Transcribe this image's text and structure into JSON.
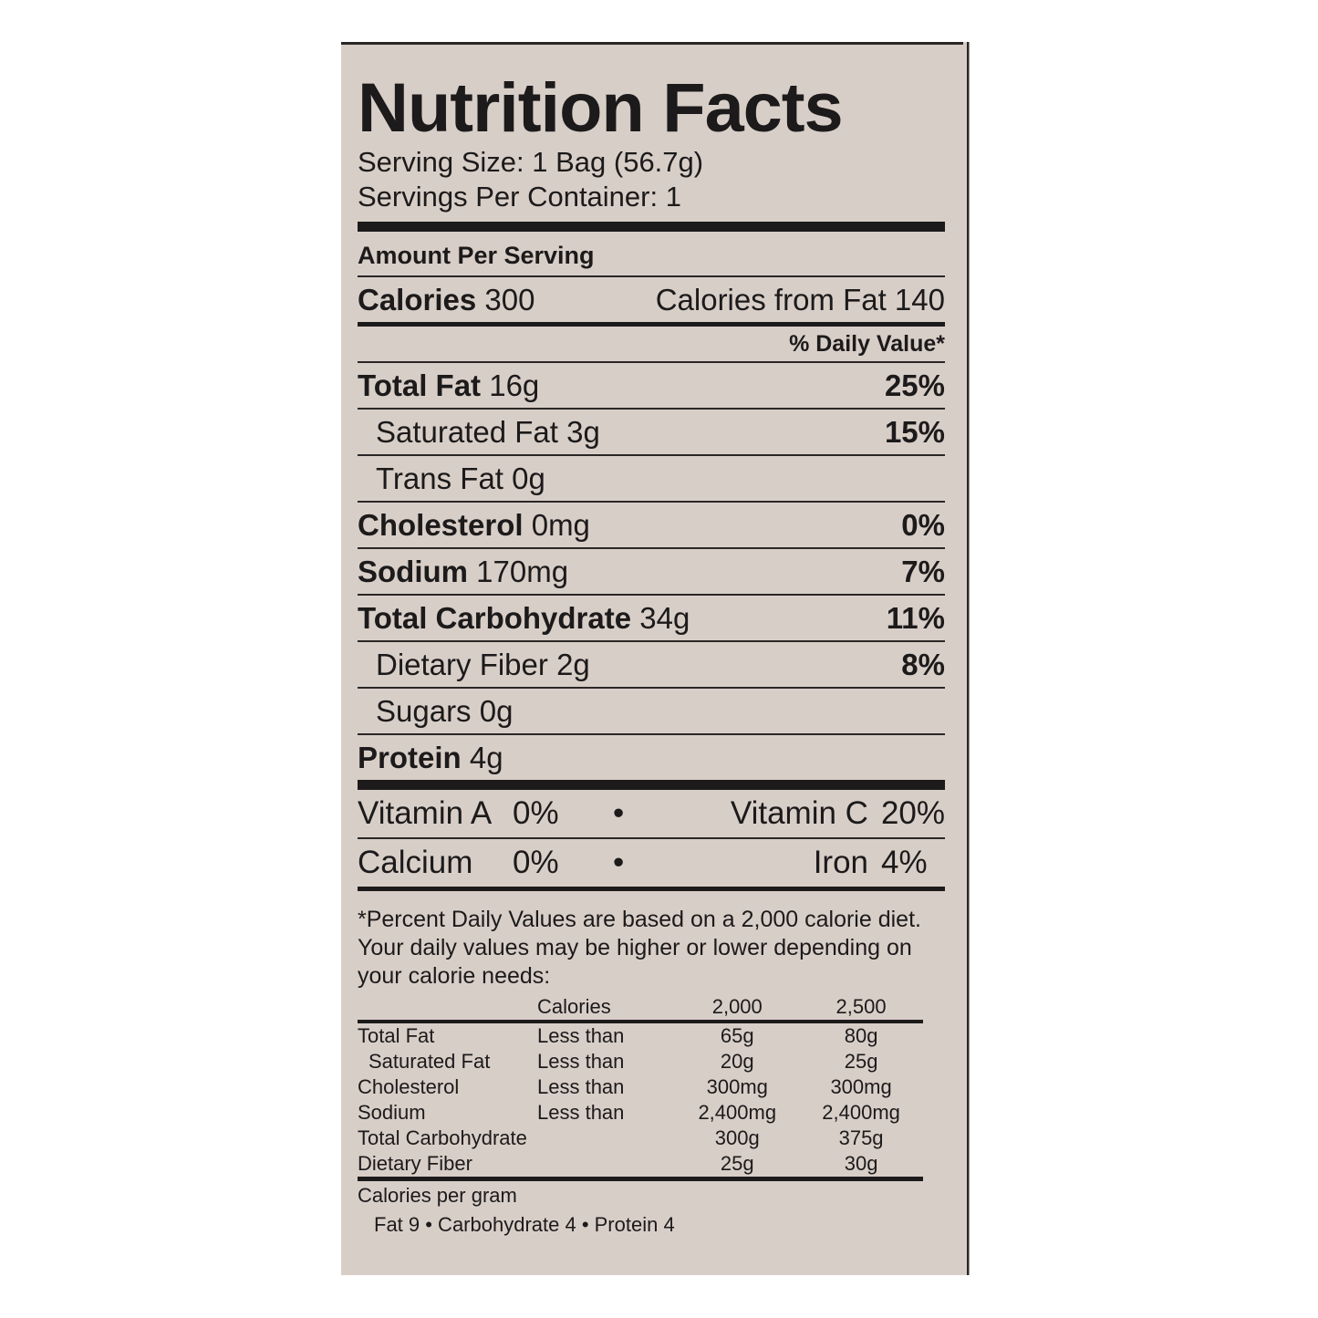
{
  "title": "Nutrition Facts",
  "serving_size": "Serving Size: 1 Bag (56.7g)",
  "servings_per_container": "Servings Per Container: 1",
  "amount_per_serving": "Amount Per Serving",
  "calories": {
    "label": "Calories",
    "value": "300",
    "from_fat": "Calories from Fat 140"
  },
  "daily_value_header": "% Daily Value*",
  "nutrients": [
    {
      "name": "Total Fat",
      "amount": "16g",
      "dv": "25%"
    },
    {
      "name": "Saturated Fat",
      "amount": "3g",
      "dv": "15%"
    },
    {
      "name": "Trans Fat",
      "amount": "0g",
      "dv": ""
    },
    {
      "name": "Cholesterol",
      "amount": "0mg",
      "dv": "0%"
    },
    {
      "name": "Sodium",
      "amount": "170mg",
      "dv": "7%"
    },
    {
      "name": "Total Carbohydrate",
      "amount": "34g",
      "dv": "11%"
    },
    {
      "name": "Dietary Fiber",
      "amount": "2g",
      "dv": "8%"
    },
    {
      "name": "Sugars",
      "amount": "0g",
      "dv": ""
    },
    {
      "name": "Protein",
      "amount": "4g",
      "dv": ""
    }
  ],
  "vitamins": [
    {
      "left": "Vitamin A",
      "left_val": "0%",
      "right": "Vitamin C",
      "right_val": "20%"
    },
    {
      "left": "Calcium",
      "left_val": "0%",
      "right": "Iron",
      "right_val": "4%"
    }
  ],
  "footnote": "*Percent Daily Values are based on a 2,000 calorie diet. Your daily values may be higher or lower depending on your calorie needs:",
  "reference_table": {
    "header": [
      "",
      "Calories",
      "2,000",
      "2,500"
    ],
    "rows": [
      [
        "Total Fat",
        "Less than",
        "65g",
        "80g"
      ],
      [
        "Saturated Fat",
        "Less than",
        "20g",
        "25g"
      ],
      [
        "Cholesterol",
        "Less than",
        "300mg",
        "300mg"
      ],
      [
        "Sodium",
        "Less than",
        "2,400mg",
        "2,400mg"
      ],
      [
        "Total Carbohydrate",
        "",
        "300g",
        "375g"
      ],
      [
        "Dietary Fiber",
        "",
        "25g",
        "30g"
      ]
    ]
  },
  "calories_per_gram": {
    "label": "Calories per gram",
    "values": "Fat 9  •  Carbohydrate 4  •  Protein 4"
  }
}
